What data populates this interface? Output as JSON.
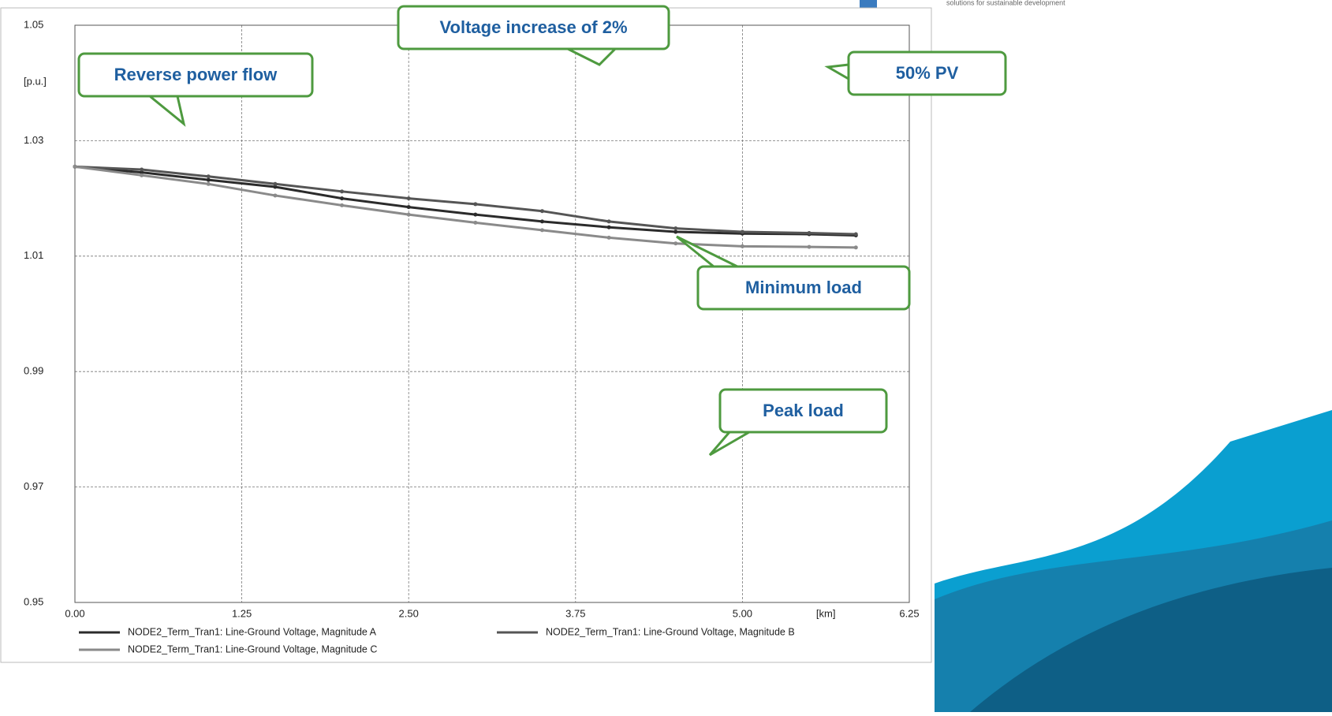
{
  "chart_data": {
    "type": "line",
    "y_label": "[p.u.]",
    "x_label": "[km]",
    "x": [
      0,
      0.5,
      1.0,
      1.5,
      2.0,
      2.5,
      3.0,
      3.5,
      4.0,
      4.5,
      5.0,
      5.5,
      5.85
    ],
    "series": [
      {
        "name": "NODE2_Term_Tran1: Line-Ground Voltage, Magnitude A",
        "color": "#2b2b2b",
        "values": [
          1.0255,
          1.0245,
          1.0232,
          1.022,
          1.02,
          1.0185,
          1.0172,
          1.016,
          1.015,
          1.0142,
          1.0139,
          1.0138,
          1.0136
        ]
      },
      {
        "name": "NODE2_Term_Tran1: Line-Ground Voltage, Magnitude B",
        "color": "#555555",
        "values": [
          1.0255,
          1.025,
          1.0238,
          1.0225,
          1.0212,
          1.02,
          1.019,
          1.0178,
          1.016,
          1.0148,
          1.0142,
          1.014,
          1.0138
        ]
      },
      {
        "name": "NODE2_Term_Tran1: Line-Ground Voltage, Magnitude C",
        "color": "#8a8a8a",
        "values": [
          1.0255,
          1.024,
          1.0225,
          1.0205,
          1.0188,
          1.0172,
          1.0158,
          1.0145,
          1.0132,
          1.0122,
          1.0117,
          1.0116,
          1.0115
        ]
      }
    ],
    "xlim": [
      0,
      6.25
    ],
    "ylim": [
      0.95,
      1.05
    ],
    "xticks": [
      {
        "value": 0,
        "label": "0.00"
      },
      1.25,
      {
        "value": 2.5,
        "label": "2.50"
      },
      3.75,
      {
        "value": 5,
        "label": "5.00"
      },
      6.25
    ],
    "yticks": [
      0.95,
      0.97,
      0.99,
      1.01,
      1.03,
      1.05
    ],
    "grid": true,
    "annotations": [
      "Reverse power flow",
      "Voltage increase of 2%",
      "50% PV",
      "Minimum load",
      "Peak load"
    ]
  },
  "branding": {
    "tagline": "solutions for sustainable development"
  }
}
